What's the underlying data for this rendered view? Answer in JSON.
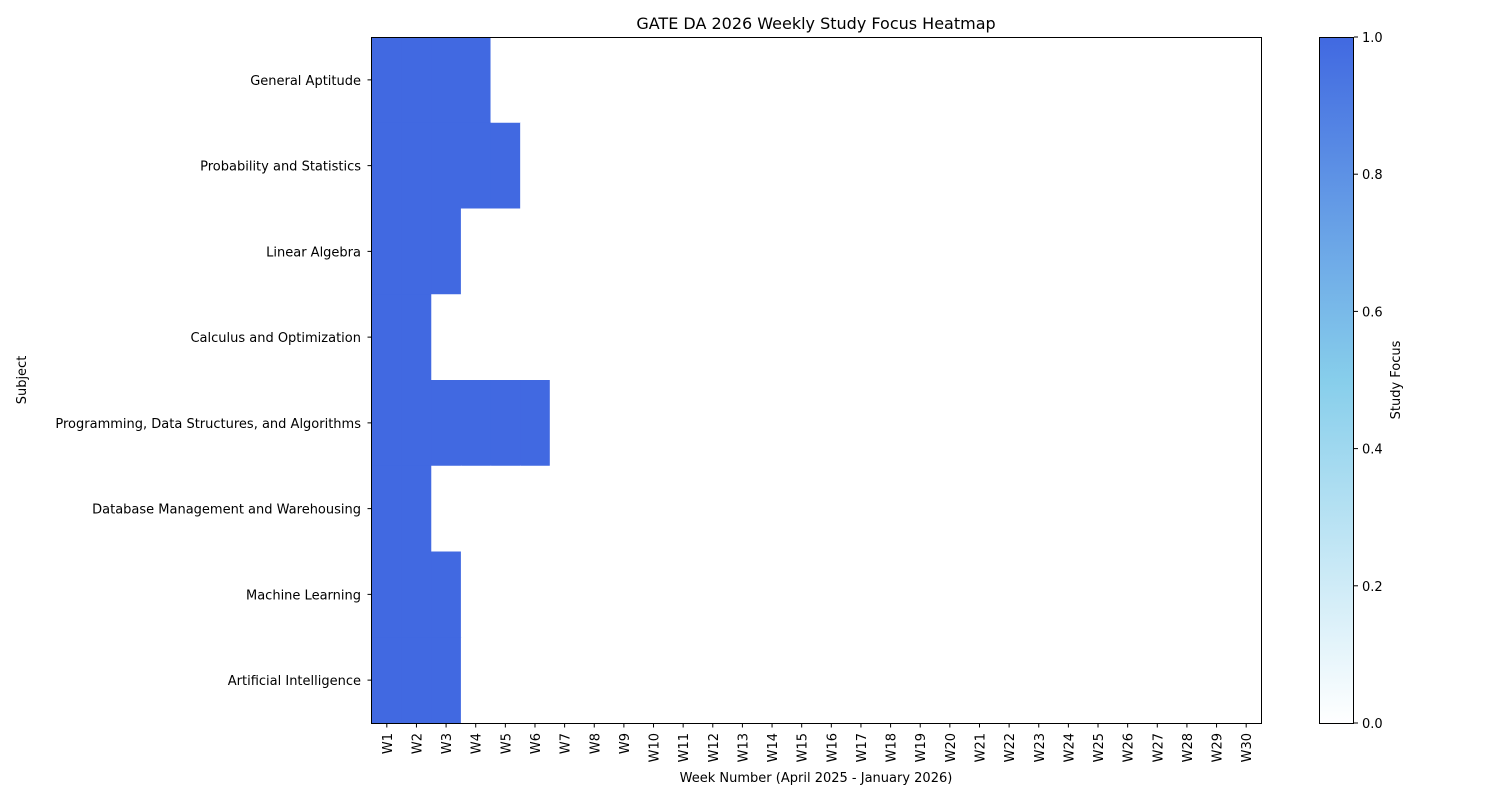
{
  "chart_data": {
    "type": "heatmap",
    "title": "GATE DA 2026 Weekly Study Focus Heatmap",
    "xlabel": "Week Number (April 2025 - January 2026)",
    "ylabel": "Subject",
    "x": [
      "W1",
      "W2",
      "W3",
      "W4",
      "W5",
      "W6",
      "W7",
      "W8",
      "W9",
      "W10",
      "W11",
      "W12",
      "W13",
      "W14",
      "W15",
      "W16",
      "W17",
      "W18",
      "W19",
      "W20",
      "W21",
      "W22",
      "W23",
      "W24",
      "W25",
      "W26",
      "W27",
      "W28",
      "W29",
      "W30"
    ],
    "y": [
      "General Aptitude",
      "Probability and Statistics",
      "Linear Algebra",
      "Calculus and Optimization",
      "Programming, Data Structures, and Algorithms",
      "Database Management and Warehousing",
      "Machine Learning",
      "Artificial Intelligence"
    ],
    "values": [
      [
        1,
        1,
        1,
        1,
        0,
        0,
        0,
        0,
        0,
        0,
        0,
        0,
        0,
        0,
        0,
        0,
        0,
        0,
        0,
        0,
        0,
        0,
        0,
        0,
        0,
        0,
        0,
        0,
        0,
        0
      ],
      [
        1,
        1,
        1,
        1,
        1,
        0,
        0,
        0,
        0,
        0,
        0,
        0,
        0,
        0,
        0,
        0,
        0,
        0,
        0,
        0,
        0,
        0,
        0,
        0,
        0,
        0,
        0,
        0,
        0,
        0
      ],
      [
        1,
        1,
        1,
        0,
        0,
        0,
        0,
        0,
        0,
        0,
        0,
        0,
        0,
        0,
        0,
        0,
        0,
        0,
        0,
        0,
        0,
        0,
        0,
        0,
        0,
        0,
        0,
        0,
        0,
        0
      ],
      [
        1,
        1,
        0,
        0,
        0,
        0,
        0,
        0,
        0,
        0,
        0,
        0,
        0,
        0,
        0,
        0,
        0,
        0,
        0,
        0,
        0,
        0,
        0,
        0,
        0,
        0,
        0,
        0,
        0,
        0
      ],
      [
        1,
        1,
        1,
        1,
        1,
        1,
        0,
        0,
        0,
        0,
        0,
        0,
        0,
        0,
        0,
        0,
        0,
        0,
        0,
        0,
        0,
        0,
        0,
        0,
        0,
        0,
        0,
        0,
        0,
        0
      ],
      [
        1,
        1,
        0,
        0,
        0,
        0,
        0,
        0,
        0,
        0,
        0,
        0,
        0,
        0,
        0,
        0,
        0,
        0,
        0,
        0,
        0,
        0,
        0,
        0,
        0,
        0,
        0,
        0,
        0,
        0
      ],
      [
        1,
        1,
        1,
        0,
        0,
        0,
        0,
        0,
        0,
        0,
        0,
        0,
        0,
        0,
        0,
        0,
        0,
        0,
        0,
        0,
        0,
        0,
        0,
        0,
        0,
        0,
        0,
        0,
        0,
        0
      ],
      [
        1,
        1,
        1,
        0,
        0,
        0,
        0,
        0,
        0,
        0,
        0,
        0,
        0,
        0,
        0,
        0,
        0,
        0,
        0,
        0,
        0,
        0,
        0,
        0,
        0,
        0,
        0,
        0,
        0,
        0
      ]
    ],
    "colorbar": {
      "label": "Study Focus",
      "range": [
        0,
        1
      ],
      "ticks": [
        "0.0",
        "0.2",
        "0.4",
        "0.6",
        "0.8",
        "1.0"
      ],
      "colors": [
        "#ffffff",
        "#87ceeb",
        "#4169e1"
      ]
    },
    "grid": false
  }
}
